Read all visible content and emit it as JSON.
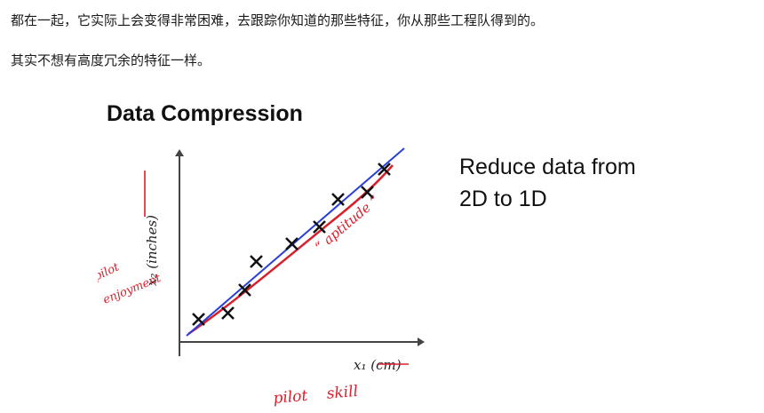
{
  "paragraphs": [
    "都在一起，它实际上会变得非常困难，去跟踪你知道的那些特征，你从那些工程队得到的。",
    "其实不想有高度冗余的特征一样。"
  ],
  "slide": {
    "title": "Data Compression",
    "text_line1": "Reduce data from",
    "text_line2": "2D to 1D",
    "x_axis_label": "x₁ (cm)",
    "y_axis_label": "x₂ (inches)",
    "annotations": {
      "pilot_enjoyment_1": "pilot",
      "pilot_enjoyment_2": "enjoyment",
      "aptitude": "“ aptitude ”",
      "pilot_skill": "pilot    skill"
    }
  },
  "colors": {
    "ink": "#111111",
    "fit_line_blue": "#2a3fd8",
    "handwriting_red": "#d8202c"
  }
}
